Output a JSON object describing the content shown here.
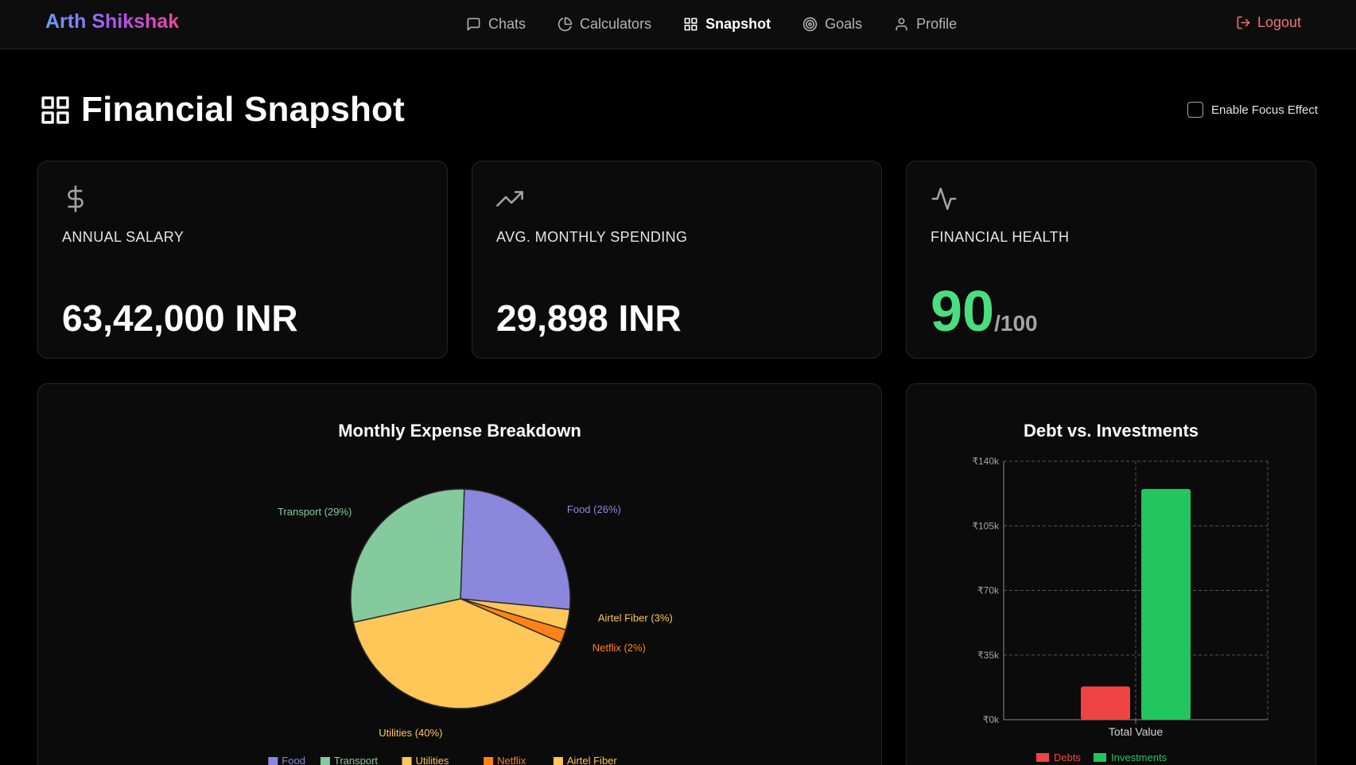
{
  "brand": "Arth Shikshak",
  "nav": {
    "items": [
      {
        "label": "Chats",
        "icon": "chat-icon"
      },
      {
        "label": "Calculators",
        "icon": "pie-chart-icon"
      },
      {
        "label": "Snapshot",
        "icon": "grid-icon",
        "active": true
      },
      {
        "label": "Goals",
        "icon": "target-icon"
      },
      {
        "label": "Profile",
        "icon": "user-icon"
      }
    ],
    "logout": "Logout"
  },
  "page": {
    "title": "Financial Snapshot",
    "focus_toggle": "Enable Focus Effect"
  },
  "stats": [
    {
      "label": "ANNUAL SALARY",
      "value": "63,42,000 INR",
      "icon": "dollar-icon"
    },
    {
      "label": "AVG. MONTHLY SPENDING",
      "value": "29,898 INR",
      "icon": "trending-up-icon"
    },
    {
      "label": "FINANCIAL HEALTH",
      "score": "90",
      "max": "/100",
      "icon": "activity-icon"
    }
  ],
  "colors": {
    "accent_green": "#4ade80",
    "logout_red": "#f87171",
    "food": "#8b87dc",
    "transport": "#85ca9c",
    "utilities": "#ffc658",
    "netflix": "#ff8218",
    "airtel": "#ffc658",
    "debts": "#ef4444",
    "investments": "#22c55e"
  },
  "chart_data": [
    {
      "type": "pie",
      "title": "Monthly Expense Breakdown",
      "slices": [
        {
          "name": "Food",
          "value": 26,
          "label": "Food (26%)",
          "color": "#8b87dc"
        },
        {
          "name": "Airtel Fiber",
          "value": 3,
          "label": "Airtel Fiber (3%)",
          "color": "#ffc658"
        },
        {
          "name": "Netflix",
          "value": 2,
          "label": "Netflix (2%)",
          "color": "#ff8218"
        },
        {
          "name": "Utilities",
          "value": 40,
          "label": "Utilities (40%)",
          "color": "#ffc658"
        },
        {
          "name": "Transport",
          "value": 29,
          "label": "Transport (29%)",
          "color": "#85ca9c"
        }
      ],
      "legend": [
        "Food",
        "Transport",
        "Utilities",
        "Netflix",
        "Airtel Fiber"
      ],
      "legend_position": "bottom"
    },
    {
      "type": "bar",
      "title": "Debt vs. Investments",
      "categories": [
        "Total Value"
      ],
      "series": [
        {
          "name": "Debts",
          "values": [
            18000
          ],
          "color": "#ef4444"
        },
        {
          "name": "Investments",
          "values": [
            125000
          ],
          "color": "#22c55e"
        }
      ],
      "ylim": [
        0,
        140000
      ],
      "yticks": [
        "₹0k",
        "₹35k",
        "₹70k",
        "₹105k",
        "₹140k"
      ],
      "ytick_values": [
        0,
        35000,
        70000,
        105000,
        140000
      ],
      "grid": true,
      "legend_position": "bottom"
    }
  ]
}
